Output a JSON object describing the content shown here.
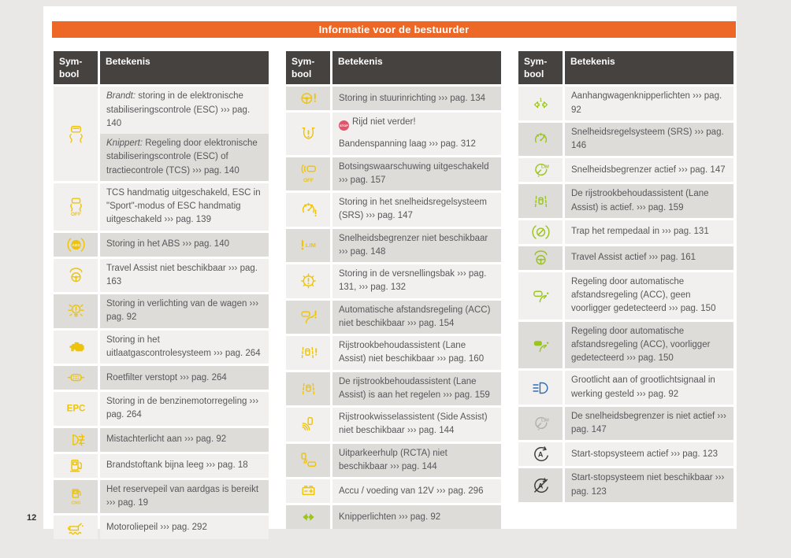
{
  "page": {
    "title": "Informatie voor de bestuurder",
    "number": "12"
  },
  "stop_badge": {
    "label": "STOP"
  },
  "colors": {
    "accent_orange": "#ed6726",
    "header_bg": "#454240",
    "row_light": "#f1f0ee",
    "row_dark": "#dedcd9",
    "text": "#58575a",
    "icon_yellow": "#eec40a",
    "icon_green": "#9cc41f",
    "icon_blue": "#2f6eb5",
    "icon_dark": "#3c3c3c",
    "icon_gray": "#b3b1ad",
    "stop_red": "#e2546b"
  },
  "table_header": {
    "symbol": "Sym-\nbool",
    "meaning": "Betekenis"
  },
  "tables": [
    {
      "rows": [
        {
          "icon": "esc",
          "icon_color": "icon_yellow",
          "cells": [
            {
              "shade": "light",
              "lines": [
                {
                  "lead": "Brandt:",
                  "text": "storing in de elektronische stabiliseringscontrole (ESC) ››› pag. 140"
                }
              ]
            },
            {
              "shade": "dark",
              "lines": [
                {
                  "lead": "Knippert:",
                  "text": "Regeling door elektronische stabiliseringscontrole (ESC) of tractiecontrole (TCS) ››› pag. 140"
                }
              ]
            }
          ]
        },
        {
          "icon": "esc-off",
          "icon_color": "icon_yellow",
          "cells": [
            {
              "shade": "light",
              "lines": [
                {
                  "text": "TCS handmatig uitgeschakeld, ESC in \"Sport\"-modus of ESC handmatig uitgeschakeld ››› pag. 139"
                }
              ]
            }
          ]
        },
        {
          "icon": "abs",
          "icon_color": "icon_yellow",
          "cells": [
            {
              "shade": "dark",
              "lines": [
                {
                  "text": "Storing in het ABS ››› pag. 140"
                }
              ]
            }
          ]
        },
        {
          "icon": "travel-assist",
          "icon_color": "icon_yellow",
          "cells": [
            {
              "shade": "light",
              "lines": [
                {
                  "text": "Travel Assist niet beschikbaar ››› pag. 163"
                }
              ]
            }
          ]
        },
        {
          "icon": "bulb-warning",
          "icon_color": "icon_yellow",
          "cells": [
            {
              "shade": "dark",
              "lines": [
                {
                  "text": "Storing in verlichting van de wagen ››› pag. 92"
                }
              ]
            }
          ]
        },
        {
          "icon": "check-engine",
          "icon_color": "icon_yellow",
          "cells": [
            {
              "shade": "light",
              "lines": [
                {
                  "text": "Storing in het uitlaatgascontrolesysteem ››› pag. 264"
                }
              ]
            }
          ]
        },
        {
          "icon": "particulate-filter",
          "icon_color": "icon_yellow",
          "cells": [
            {
              "shade": "dark",
              "lines": [
                {
                  "text": "Roetfilter verstopt ››› pag. 264"
                }
              ]
            }
          ]
        },
        {
          "icon": "epc",
          "icon_color": "icon_yellow",
          "cells": [
            {
              "shade": "light",
              "lines": [
                {
                  "text": "Storing in de benzinemotorregeling ››› pag. 264"
                }
              ]
            }
          ]
        },
        {
          "icon": "rear-fog-light",
          "icon_color": "icon_yellow",
          "cells": [
            {
              "shade": "dark",
              "lines": [
                {
                  "text": "Mistachterlicht aan ››› pag. 92"
                }
              ]
            }
          ]
        },
        {
          "icon": "fuel-low",
          "icon_color": "icon_yellow",
          "cells": [
            {
              "shade": "light",
              "lines": [
                {
                  "text": "Brandstoftank bijna leeg ››› pag. 18"
                }
              ]
            }
          ]
        },
        {
          "icon": "cng-reserve",
          "icon_color": "icon_yellow",
          "cells": [
            {
              "shade": "dark",
              "lines": [
                {
                  "text": "Het reservepeil van aardgas is bereikt ››› pag. 19"
                }
              ]
            }
          ]
        },
        {
          "icon": "oil-level",
          "icon_color": "icon_yellow",
          "cells": [
            {
              "shade": "light",
              "lines": [
                {
                  "text": "Motoroliepeil ››› pag. 292"
                }
              ]
            }
          ]
        }
      ]
    },
    {
      "rows": [
        {
          "icon": "steering-warning",
          "icon_color": "icon_yellow",
          "cells": [
            {
              "shade": "dark",
              "lines": [
                {
                  "text": "Storing in stuurinrichting ››› pag. 134"
                }
              ]
            }
          ]
        },
        {
          "icon": "tyre-pressure",
          "icon_color": "icon_yellow",
          "cells": [
            {
              "shade": "light",
              "lines": [
                {
                  "stop": true,
                  "text": "Rijd niet verder!"
                },
                {
                  "text": "Bandenspanning laag ››› pag. 312"
                }
              ]
            }
          ]
        },
        {
          "icon": "front-assist-off",
          "icon_color": "icon_yellow",
          "cells": [
            {
              "shade": "dark",
              "lines": [
                {
                  "text": "Botsingswaarschuwing uitgeschakeld ››› pag. 157"
                }
              ]
            }
          ]
        },
        {
          "icon": "cruise-control-warning",
          "icon_color": "icon_yellow",
          "cells": [
            {
              "shade": "light",
              "lines": [
                {
                  "text": "Storing in het snelheidsregelsysteem (SRS) ››› pag. 147"
                }
              ]
            }
          ]
        },
        {
          "icon": "speed-limiter-warning",
          "icon_color": "icon_yellow",
          "cells": [
            {
              "shade": "dark",
              "lines": [
                {
                  "text": "Snelheidsbegrenzer niet beschikbaar ››› pag. 148"
                }
              ]
            }
          ]
        },
        {
          "icon": "gearbox-warning",
          "icon_color": "icon_yellow",
          "cells": [
            {
              "shade": "light",
              "lines": [
                {
                  "text": "Storing in de versnellingsbak ››› pag. 131, ››› pag. 132"
                }
              ]
            }
          ]
        },
        {
          "icon": "acc-warning",
          "icon_color": "icon_yellow",
          "cells": [
            {
              "shade": "dark",
              "lines": [
                {
                  "text": "Automatische afstandsregeling (ACC) niet beschikbaar ››› pag. 154"
                }
              ]
            }
          ]
        },
        {
          "icon": "lane-assist-warning",
          "icon_color": "icon_yellow",
          "cells": [
            {
              "shade": "light",
              "lines": [
                {
                  "text": "Rijstrookbehoudassistent (Lane Assist) niet beschikbaar ››› pag. 160"
                }
              ]
            }
          ]
        },
        {
          "icon": "lane-assist",
          "icon_color": "icon_yellow",
          "cells": [
            {
              "shade": "dark",
              "lines": [
                {
                  "text": "De rijstrookbehoudassistent (Lane Assist) is aan het regelen ››› pag. 159"
                }
              ]
            }
          ]
        },
        {
          "icon": "side-assist",
          "icon_color": "icon_yellow",
          "cells": [
            {
              "shade": "light",
              "lines": [
                {
                  "text": "Rijstrookwisselassistent (Side Assist) niet beschikbaar ››› pag. 144"
                }
              ]
            }
          ]
        },
        {
          "icon": "rcta",
          "icon_color": "icon_yellow",
          "cells": [
            {
              "shade": "dark",
              "lines": [
                {
                  "text": "Uitparkeerhulp (RCTA) niet beschikbaar ››› pag. 144"
                }
              ]
            }
          ]
        },
        {
          "icon": "battery",
          "icon_color": "icon_yellow",
          "cells": [
            {
              "shade": "light",
              "lines": [
                {
                  "text": "Accu / voeding van 12V ››› pag. 296"
                }
              ]
            }
          ]
        },
        {
          "icon": "turn-signals",
          "icon_color": "icon_green",
          "cells": [
            {
              "shade": "dark",
              "lines": [
                {
                  "text": "Knipperlichten ››› pag. 92"
                }
              ]
            }
          ]
        }
      ]
    },
    {
      "rows": [
        {
          "icon": "trailer-turn-signals",
          "icon_color": "icon_green",
          "cells": [
            {
              "shade": "light",
              "lines": [
                {
                  "text": "Aanhangwagenknipperlichten ››› pag. 92"
                }
              ]
            }
          ]
        },
        {
          "icon": "cruise-control",
          "icon_color": "icon_green",
          "cells": [
            {
              "shade": "dark",
              "lines": [
                {
                  "text": "Snelheidsregelsysteem (SRS) ››› pag. 146"
                }
              ]
            }
          ]
        },
        {
          "icon": "speed-limiter",
          "icon_color": "icon_green",
          "cells": [
            {
              "shade": "light",
              "lines": [
                {
                  "text": "Snelheidsbegrenzer actief ››› pag. 147"
                }
              ]
            }
          ]
        },
        {
          "icon": "lane-assist",
          "icon_color": "icon_green",
          "cells": [
            {
              "shade": "dark",
              "lines": [
                {
                  "text": "De rijstrookbehoudassistent (Lane Assist) is actief. ››› pag. 159"
                }
              ]
            }
          ]
        },
        {
          "icon": "brake-pedal",
          "icon_color": "icon_green",
          "cells": [
            {
              "shade": "light",
              "lines": [
                {
                  "text": "Trap het rempedaal in ››› pag. 131"
                }
              ]
            }
          ]
        },
        {
          "icon": "travel-assist",
          "icon_color": "icon_green",
          "cells": [
            {
              "shade": "dark",
              "lines": [
                {
                  "text": "Travel Assist actief ››› pag. 161"
                }
              ]
            }
          ]
        },
        {
          "icon": "acc-no-vehicle",
          "icon_color": "icon_green",
          "cells": [
            {
              "shade": "light",
              "lines": [
                {
                  "text": "Regeling door automatische afstandsregeling (ACC), geen voorligger gedetecteerd ››› pag. 150"
                }
              ]
            }
          ]
        },
        {
          "icon": "acc-vehicle",
          "icon_color": "icon_green",
          "cells": [
            {
              "shade": "dark",
              "lines": [
                {
                  "text": "Regeling door automatische afstandsregeling (ACC), voorligger gedetecteerd ››› pag. 150"
                }
              ]
            }
          ]
        },
        {
          "icon": "high-beam",
          "icon_color": "icon_blue",
          "cells": [
            {
              "shade": "light",
              "lines": [
                {
                  "text": "Grootlicht aan of grootlichtsignaal in werking gesteld ››› pag. 92"
                }
              ]
            }
          ]
        },
        {
          "icon": "speed-limiter-inactive",
          "icon_color": "icon_gray",
          "cells": [
            {
              "shade": "dark",
              "lines": [
                {
                  "text": "De snelheidsbegrenzer is niet actief ››› pag. 147"
                }
              ]
            }
          ]
        },
        {
          "icon": "start-stop",
          "icon_color": "icon_dark",
          "cells": [
            {
              "shade": "light",
              "lines": [
                {
                  "text": "Start-stopsysteem actief ››› pag. 123"
                }
              ]
            }
          ]
        },
        {
          "icon": "start-stop-off",
          "icon_color": "icon_dark",
          "cells": [
            {
              "shade": "dark",
              "lines": [
                {
                  "text": "Start-stopsysteem niet beschikbaar ››› pag. 123"
                }
              ]
            }
          ]
        }
      ]
    }
  ]
}
